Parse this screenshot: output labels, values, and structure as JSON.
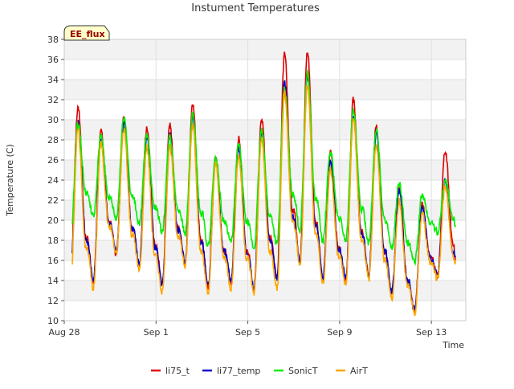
{
  "chart_data": {
    "type": "line",
    "title": "Instument Temperatures",
    "xlabel": "Time",
    "ylabel": "Temperature (C)",
    "badge": "EE_flux",
    "ylim": [
      10,
      38
    ],
    "yticks": [
      10,
      12,
      14,
      16,
      18,
      20,
      22,
      24,
      26,
      28,
      30,
      32,
      34,
      36,
      38
    ],
    "xlim": [
      0,
      17.5
    ],
    "xticks": [
      {
        "label": "Aug 28",
        "day": 0
      },
      {
        "label": "Sep 1",
        "day": 4
      },
      {
        "label": "Sep 5",
        "day": 8
      },
      {
        "label": "Sep 9",
        "day": 12
      },
      {
        "label": "Sep 13",
        "day": 16
      }
    ],
    "grid": true,
    "legend_position": "bottom",
    "days_peak": {
      "li75_t": [
        31.3,
        29.0,
        30.3,
        29.4,
        29.6,
        31.6,
        26.2,
        28.2,
        30.2,
        36.6,
        36.8,
        27.0,
        32.0,
        29.4,
        23.4,
        21.6,
        27.0
      ],
      "li77_temp": [
        29.8,
        28.2,
        29.8,
        28.4,
        28.6,
        30.3,
        26.0,
        27.3,
        28.9,
        33.6,
        34.4,
        25.8,
        30.4,
        28.8,
        22.9,
        21.4,
        24.0
      ],
      "SonicT": [
        29.7,
        28.3,
        30.3,
        28.5,
        28.3,
        30.5,
        26.3,
        27.5,
        28.9,
        33.1,
        34.6,
        26.8,
        30.9,
        29.1,
        23.6,
        22.5,
        24.0
      ],
      "AirT": [
        29.0,
        27.6,
        29.1,
        27.3,
        27.4,
        29.6,
        25.6,
        26.4,
        28.1,
        32.6,
        33.4,
        25.1,
        30.1,
        27.6,
        22.0,
        20.7,
        23.4
      ]
    },
    "days_min": {
      "li75_t": [
        14.6,
        13.8,
        16.6,
        15.4,
        13.6,
        15.6,
        13.4,
        13.8,
        13.0,
        14.1,
        15.8,
        14.1,
        14.0,
        14.4,
        12.6,
        10.8,
        14.5
      ],
      "li77_temp": [
        14.6,
        13.9,
        16.9,
        15.6,
        13.6,
        15.8,
        13.5,
        13.9,
        13.2,
        14.2,
        15.8,
        14.2,
        14.2,
        14.6,
        12.8,
        11.0,
        14.5
      ],
      "SonicT": [
        17.8,
        20.3,
        20.1,
        19.6,
        18.8,
        18.7,
        17.4,
        17.8,
        17.2,
        17.6,
        19.0,
        17.9,
        18.0,
        17.8,
        17.1,
        15.8,
        18.8
      ],
      "AirT": [
        13.8,
        13.2,
        16.6,
        15.0,
        12.8,
        15.4,
        12.6,
        13.2,
        12.8,
        13.1,
        15.4,
        13.6,
        13.6,
        14.1,
        12.2,
        10.6,
        14.2
      ]
    },
    "series": [
      {
        "name": "li75_t",
        "color": "#dd0000"
      },
      {
        "name": "li77_temp",
        "color": "#0000cc"
      },
      {
        "name": "SonicT",
        "color": "#00ee00"
      },
      {
        "name": "AirT",
        "color": "#ffa500"
      }
    ]
  }
}
